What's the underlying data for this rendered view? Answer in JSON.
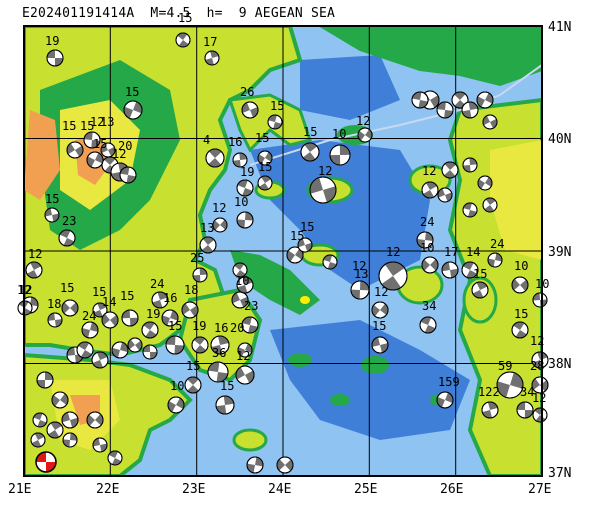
{
  "map": {
    "title": "E202401191414A  M=4.5  h=  9 AEGEAN SEA",
    "region": "AEGEAN SEA",
    "event_id": "E202401191414A",
    "magnitude_text": "M=4.5",
    "depth_text": "h=  9",
    "lat_labels": [
      "41N",
      "40N",
      "39N",
      "38N",
      "37N"
    ],
    "lon_labels": [
      "21E",
      "22E",
      "23E",
      "24E",
      "25E",
      "26E",
      "27E"
    ],
    "legend_colors": {
      "deep_sea": "#3f7fd8",
      "shallow_sea": "#8fc4f2",
      "coast": "#25a848",
      "lowland": "#c8e030",
      "upland": "#e9e840",
      "high": "#f0a050",
      "mainshock_fill": "#e01818"
    },
    "depth_labels": [
      "19",
      "15",
      "17",
      "15",
      "15",
      "15",
      "15",
      "12",
      "13",
      "12",
      "20",
      "4",
      "16",
      "15",
      "26",
      "15",
      "15",
      "10",
      "12",
      "12",
      "19",
      "15",
      "10",
      "12",
      "15",
      "23",
      "12",
      "12",
      "15",
      "18",
      "12",
      "15",
      "24",
      "14",
      "15",
      "19",
      "24",
      "16",
      "18",
      "15",
      "19",
      "16",
      "20",
      "12",
      "36",
      "15",
      "15",
      "10",
      "10",
      "23",
      "13",
      "25",
      "15",
      "15",
      "12",
      "12",
      "13",
      "12",
      "15",
      "34",
      "12",
      "24",
      "10",
      "17",
      "14",
      "15",
      "24",
      "10",
      "10",
      "15",
      "12",
      "59",
      "28",
      "34",
      "12",
      "122",
      "159"
    ]
  }
}
